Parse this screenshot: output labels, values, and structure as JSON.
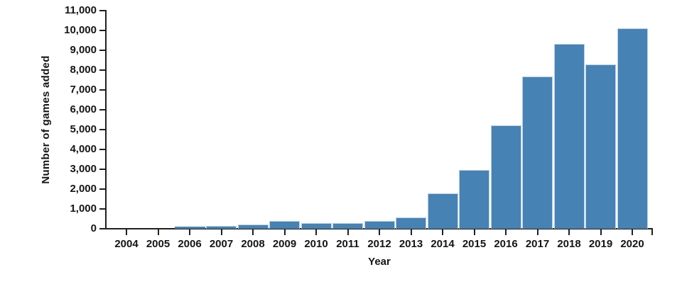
{
  "chart_data": {
    "type": "bar",
    "title": "",
    "xlabel": "Year",
    "ylabel": "Number of games added",
    "categories": [
      "2004",
      "2005",
      "2006",
      "2007",
      "2008",
      "2009",
      "2010",
      "2011",
      "2012",
      "2013",
      "2014",
      "2015",
      "2016",
      "2017",
      "2018",
      "2019",
      "2020"
    ],
    "values": [
      10,
      25,
      90,
      130,
      220,
      380,
      300,
      280,
      400,
      560,
      1780,
      2960,
      5200,
      7670,
      9310,
      8300,
      10120
    ],
    "ylim": [
      0,
      11000
    ],
    "ytick_step": 1000,
    "ytick_labels": [
      "0",
      "1,000",
      "2,000",
      "3,000",
      "4,000",
      "5,000",
      "6,000",
      "7,000",
      "8,000",
      "9,000",
      "10,000",
      "11,000"
    ],
    "grid": false,
    "legend": null,
    "bar_color": "#4682b4",
    "bar_edge_color": "#b9cfe4",
    "axis_color": "#202020",
    "text_color": "#151515"
  }
}
